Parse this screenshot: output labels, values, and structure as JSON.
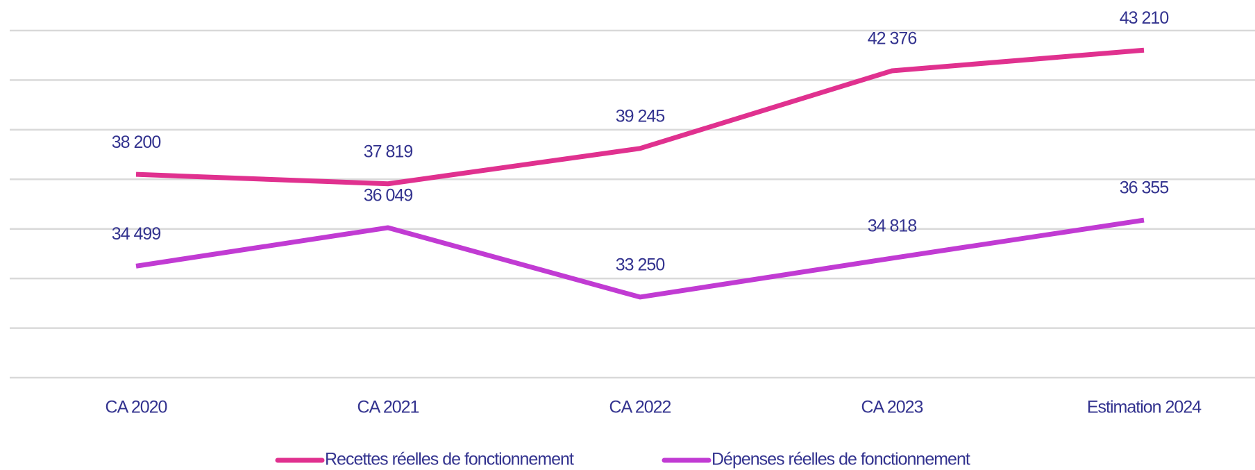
{
  "chart_data": {
    "type": "line",
    "categories": [
      "CA 2020",
      "CA 2021",
      "CA 2022",
      "CA 2023",
      "Estimation 2024"
    ],
    "series": [
      {
        "name": "Recettes réelles de fonctionnement",
        "color": "#e0318f",
        "values": [
          38200,
          37819,
          39245,
          42376,
          43210
        ],
        "value_labels": [
          "38 200",
          "37 819",
          "39 245",
          "42 376",
          "43 210"
        ]
      },
      {
        "name": "Dépenses réelles de fonctionnement",
        "color": "#c13bd3",
        "values": [
          34499,
          36049,
          33250,
          34818,
          36355
        ],
        "value_labels": [
          "34 499",
          "36 049",
          "33 250",
          "34 818",
          "36 355"
        ]
      }
    ],
    "ylim": [
      30000,
      44000
    ],
    "yticks": [
      30000,
      32000,
      34000,
      36000,
      38000,
      40000,
      42000,
      44000
    ],
    "grid": true
  }
}
